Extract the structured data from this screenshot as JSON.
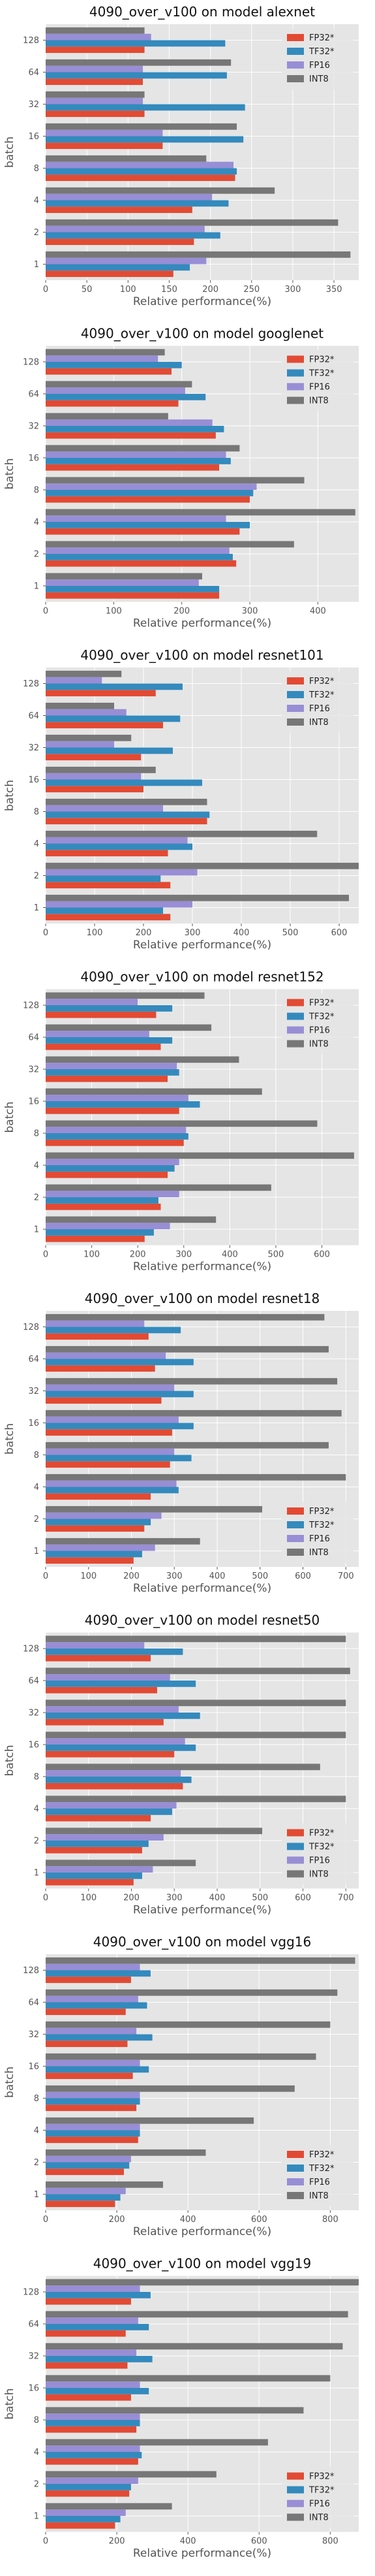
{
  "chart_data": [
    {
      "type": "bar",
      "title": "4090_over_v100 on model alexnet",
      "xlabel": "Relative performance(%)",
      "ylabel": "batch",
      "categories": [
        "1",
        "2",
        "4",
        "8",
        "16",
        "32",
        "64",
        "128"
      ],
      "xlim": [
        0,
        380
      ],
      "xticks": [
        0,
        50,
        100,
        150,
        200,
        250,
        300,
        350
      ],
      "legend_position": "top-right",
      "grid": true,
      "series": [
        {
          "name": "FP32*",
          "color": "#E24A33",
          "values": [
            155,
            180,
            178,
            230,
            142,
            120,
            118,
            120
          ]
        },
        {
          "name": "TF32*",
          "color": "#348ABD",
          "values": [
            175,
            212,
            222,
            232,
            240,
            242,
            220,
            218
          ]
        },
        {
          "name": "FP16",
          "color": "#988ED5",
          "values": [
            195,
            193,
            202,
            228,
            142,
            118,
            118,
            128
          ]
        },
        {
          "name": "INT8",
          "color": "#777777",
          "values": [
            370,
            355,
            278,
            195,
            232,
            120,
            225,
            120
          ]
        }
      ]
    },
    {
      "type": "bar",
      "title": "4090_over_v100 on model googlenet",
      "xlabel": "Relative performance(%)",
      "ylabel": "batch",
      "categories": [
        "1",
        "2",
        "4",
        "8",
        "16",
        "32",
        "64",
        "128"
      ],
      "xlim": [
        0,
        460
      ],
      "xticks": [
        0,
        100,
        200,
        300,
        400
      ],
      "legend_position": "top-right",
      "grid": true,
      "series": [
        {
          "name": "FP32*",
          "color": "#E24A33",
          "values": [
            255,
            280,
            285,
            300,
            255,
            250,
            195,
            185
          ]
        },
        {
          "name": "TF32*",
          "color": "#348ABD",
          "values": [
            255,
            275,
            300,
            305,
            272,
            262,
            235,
            200
          ]
        },
        {
          "name": "FP16",
          "color": "#988ED5",
          "values": [
            225,
            270,
            265,
            310,
            265,
            245,
            205,
            165
          ]
        },
        {
          "name": "INT8",
          "color": "#777777",
          "values": [
            230,
            365,
            455,
            380,
            285,
            180,
            215,
            175
          ]
        }
      ]
    },
    {
      "type": "bar",
      "title": "4090_over_v100 on model resnet101",
      "xlabel": "Relative performance(%)",
      "ylabel": "batch",
      "categories": [
        "1",
        "2",
        "4",
        "8",
        "16",
        "32",
        "64",
        "128"
      ],
      "xlim": [
        0,
        640
      ],
      "xticks": [
        0,
        100,
        200,
        300,
        400,
        500,
        600
      ],
      "legend_position": "top-right",
      "grid": true,
      "series": [
        {
          "name": "FP32*",
          "color": "#E24A33",
          "values": [
            255,
            255,
            250,
            330,
            200,
            195,
            240,
            225
          ]
        },
        {
          "name": "TF32*",
          "color": "#348ABD",
          "values": [
            240,
            235,
            300,
            335,
            320,
            260,
            275,
            280
          ]
        },
        {
          "name": "FP16",
          "color": "#988ED5",
          "values": [
            300,
            310,
            290,
            240,
            195,
            140,
            165,
            115
          ]
        },
        {
          "name": "INT8",
          "color": "#777777",
          "values": [
            620,
            640,
            555,
            330,
            225,
            175,
            140,
            155
          ]
        }
      ]
    },
    {
      "type": "bar",
      "title": "4090_over_v100 on model resnet152",
      "xlabel": "Relative performance(%)",
      "ylabel": "batch",
      "categories": [
        "1",
        "2",
        "4",
        "8",
        "16",
        "32",
        "64",
        "128"
      ],
      "xlim": [
        0,
        680
      ],
      "xticks": [
        0,
        100,
        200,
        300,
        400,
        500,
        600
      ],
      "legend_position": "top-right",
      "grid": true,
      "series": [
        {
          "name": "FP32*",
          "color": "#E24A33",
          "values": [
            215,
            250,
            265,
            300,
            290,
            265,
            250,
            240
          ]
        },
        {
          "name": "TF32*",
          "color": "#348ABD",
          "values": [
            235,
            245,
            280,
            310,
            335,
            290,
            275,
            275
          ]
        },
        {
          "name": "FP16",
          "color": "#988ED5",
          "values": [
            270,
            290,
            290,
            305,
            310,
            285,
            225,
            200
          ]
        },
        {
          "name": "INT8",
          "color": "#777777",
          "values": [
            370,
            490,
            670,
            590,
            470,
            420,
            360,
            345
          ]
        }
      ]
    },
    {
      "type": "bar",
      "title": "4090_over_v100 on model resnet18",
      "xlabel": "Relative performance(%)",
      "ylabel": "batch",
      "categories": [
        "1",
        "2",
        "4",
        "8",
        "16",
        "32",
        "64",
        "128"
      ],
      "xlim": [
        0,
        730
      ],
      "xticks": [
        0,
        100,
        200,
        300,
        400,
        500,
        600,
        700
      ],
      "legend_position": "bottom-right",
      "grid": true,
      "series": [
        {
          "name": "FP32*",
          "color": "#E24A33",
          "values": [
            205,
            230,
            245,
            290,
            295,
            270,
            255,
            240
          ]
        },
        {
          "name": "TF32*",
          "color": "#348ABD",
          "values": [
            225,
            245,
            310,
            340,
            345,
            345,
            345,
            315
          ]
        },
        {
          "name": "FP16",
          "color": "#988ED5",
          "values": [
            255,
            270,
            305,
            300,
            310,
            300,
            280,
            230
          ]
        },
        {
          "name": "INT8",
          "color": "#777777",
          "values": [
            360,
            505,
            700,
            660,
            690,
            680,
            660,
            650
          ]
        }
      ]
    },
    {
      "type": "bar",
      "title": "4090_over_v100 on model resnet50",
      "xlabel": "Relative performance(%)",
      "ylabel": "batch",
      "categories": [
        "1",
        "2",
        "4",
        "8",
        "16",
        "32",
        "64",
        "128"
      ],
      "xlim": [
        0,
        730
      ],
      "xticks": [
        0,
        100,
        200,
        300,
        400,
        500,
        600,
        700
      ],
      "legend_position": "bottom-right",
      "grid": true,
      "series": [
        {
          "name": "FP32*",
          "color": "#E24A33",
          "values": [
            205,
            225,
            245,
            320,
            300,
            275,
            260,
            245
          ]
        },
        {
          "name": "TF32*",
          "color": "#348ABD",
          "values": [
            225,
            240,
            295,
            340,
            350,
            360,
            350,
            320
          ]
        },
        {
          "name": "FP16",
          "color": "#988ED5",
          "values": [
            250,
            275,
            305,
            315,
            325,
            310,
            290,
            230
          ]
        },
        {
          "name": "INT8",
          "color": "#777777",
          "values": [
            350,
            505,
            700,
            640,
            700,
            700,
            710,
            700
          ]
        }
      ]
    },
    {
      "type": "bar",
      "title": "4090_over_v100 on model vgg16",
      "xlabel": "Relative performance(%)",
      "ylabel": "batch",
      "categories": [
        "1",
        "2",
        "4",
        "8",
        "16",
        "32",
        "64",
        "128"
      ],
      "xlim": [
        0,
        880
      ],
      "xticks": [
        0,
        200,
        400,
        600,
        800
      ],
      "legend_position": "bottom-right",
      "grid": true,
      "series": [
        {
          "name": "FP32*",
          "color": "#E24A33",
          "values": [
            195,
            220,
            260,
            255,
            245,
            230,
            225,
            240
          ]
        },
        {
          "name": "TF32*",
          "color": "#348ABD",
          "values": [
            210,
            235,
            265,
            265,
            290,
            300,
            285,
            295
          ]
        },
        {
          "name": "FP16",
          "color": "#988ED5",
          "values": [
            225,
            240,
            265,
            265,
            265,
            255,
            260,
            265
          ]
        },
        {
          "name": "INT8",
          "color": "#777777",
          "values": [
            330,
            450,
            585,
            700,
            760,
            800,
            820,
            870
          ]
        }
      ]
    },
    {
      "type": "bar",
      "title": "4090_over_v100 on model vgg19",
      "xlabel": "Relative performance(%)",
      "ylabel": "batch",
      "categories": [
        "1",
        "2",
        "4",
        "8",
        "16",
        "32",
        "64",
        "128"
      ],
      "xlim": [
        0,
        880
      ],
      "xticks": [
        0,
        200,
        400,
        600,
        800
      ],
      "legend_position": "bottom-right",
      "grid": true,
      "series": [
        {
          "name": "FP32*",
          "color": "#E24A33",
          "values": [
            195,
            235,
            260,
            255,
            240,
            230,
            225,
            240
          ]
        },
        {
          "name": "TF32*",
          "color": "#348ABD",
          "values": [
            210,
            240,
            270,
            265,
            290,
            300,
            290,
            295
          ]
        },
        {
          "name": "FP16",
          "color": "#988ED5",
          "values": [
            225,
            260,
            265,
            265,
            265,
            255,
            260,
            265
          ]
        },
        {
          "name": "INT8",
          "color": "#777777",
          "values": [
            355,
            480,
            625,
            725,
            800,
            835,
            850,
            880
          ]
        }
      ]
    }
  ]
}
